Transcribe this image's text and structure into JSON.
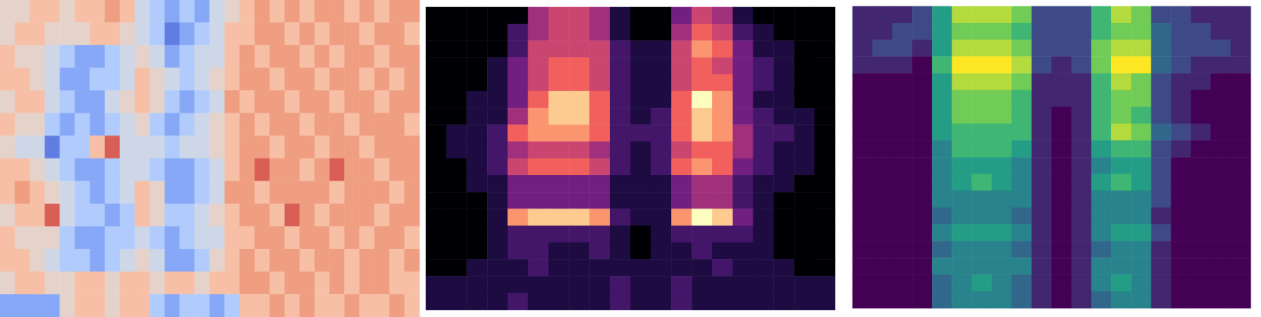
{
  "chart_data": [
    {
      "type": "heatmap",
      "color": "coolwarm",
      "tick_labels": false,
      "value_range": [
        0,
        9
      ],
      "cells": [
        [
          5,
          5,
          6,
          6,
          5,
          6,
          6,
          7,
          6,
          4,
          3,
          2,
          3,
          2,
          4,
          5,
          6,
          7,
          6,
          7,
          6,
          7,
          7,
          6,
          7,
          6,
          7,
          7
        ],
        [
          5,
          6,
          6,
          5,
          5,
          5,
          6,
          6,
          5,
          4,
          3,
          1,
          2,
          3,
          4,
          6,
          6,
          7,
          7,
          6,
          7,
          6,
          7,
          7,
          6,
          7,
          7,
          6
        ],
        [
          6,
          5,
          5,
          4,
          3,
          2,
          2,
          3,
          4,
          5,
          4,
          2,
          3,
          4,
          4,
          6,
          7,
          6,
          7,
          7,
          6,
          7,
          6,
          7,
          7,
          6,
          7,
          7
        ],
        [
          6,
          6,
          5,
          4,
          2,
          2,
          3,
          3,
          4,
          6,
          5,
          4,
          3,
          4,
          5,
          6,
          7,
          7,
          6,
          7,
          7,
          6,
          7,
          7,
          6,
          7,
          6,
          7
        ],
        [
          5,
          6,
          6,
          4,
          3,
          2,
          2,
          4,
          5,
          6,
          5,
          3,
          2,
          3,
          4,
          7,
          6,
          7,
          7,
          6,
          7,
          7,
          6,
          7,
          7,
          6,
          7,
          7
        ],
        [
          6,
          5,
          5,
          3,
          2,
          3,
          2,
          3,
          4,
          5,
          3,
          2,
          3,
          4,
          5,
          6,
          7,
          6,
          7,
          7,
          6,
          7,
          7,
          6,
          7,
          7,
          7,
          6
        ],
        [
          5,
          4,
          4,
          1,
          3,
          3,
          6,
          8,
          4,
          4,
          4,
          3,
          4,
          4,
          5,
          6,
          7,
          7,
          6,
          7,
          7,
          6,
          7,
          7,
          6,
          7,
          7,
          7
        ],
        [
          6,
          6,
          5,
          4,
          3,
          2,
          2,
          3,
          4,
          4,
          3,
          2,
          2,
          3,
          4,
          6,
          7,
          8,
          7,
          7,
          6,
          7,
          8,
          7,
          7,
          6,
          7,
          7
        ],
        [
          6,
          7,
          6,
          5,
          4,
          3,
          2,
          3,
          4,
          6,
          5,
          2,
          2,
          3,
          4,
          7,
          7,
          6,
          7,
          7,
          7,
          7,
          6,
          7,
          7,
          7,
          6,
          7
        ],
        [
          5,
          6,
          6,
          8,
          4,
          3,
          3,
          2,
          3,
          6,
          5,
          3,
          3,
          4,
          5,
          6,
          7,
          7,
          6,
          8,
          7,
          6,
          7,
          7,
          7,
          6,
          7,
          7
        ],
        [
          6,
          5,
          5,
          5,
          3,
          2,
          2,
          3,
          3,
          4,
          3,
          2,
          3,
          4,
          4,
          6,
          6,
          7,
          7,
          6,
          7,
          7,
          6,
          7,
          6,
          7,
          7,
          6
        ],
        [
          6,
          6,
          5,
          4,
          3,
          3,
          2,
          3,
          4,
          5,
          4,
          2,
          2,
          3,
          5,
          6,
          7,
          6,
          7,
          7,
          6,
          7,
          7,
          6,
          7,
          7,
          6,
          7
        ],
        [
          5,
          6,
          6,
          5,
          5,
          6,
          6,
          5,
          6,
          6,
          5,
          6,
          6,
          5,
          6,
          6,
          7,
          7,
          6,
          7,
          7,
          6,
          7,
          6,
          7,
          7,
          6,
          6
        ],
        [
          2,
          2,
          2,
          2,
          5,
          6,
          6,
          5,
          6,
          6,
          3,
          2,
          3,
          3,
          2,
          3,
          6,
          6,
          7,
          6,
          7,
          6,
          6,
          7,
          6,
          6,
          7,
          6
        ]
      ]
    },
    {
      "type": "heatmap",
      "color": "magma",
      "tick_labels": false,
      "value_range": [
        0,
        9
      ],
      "cells": [
        [
          0,
          0,
          0,
          0,
          0,
          4,
          5,
          5,
          4,
          1,
          0,
          0,
          3,
          5,
          4,
          1,
          0,
          0,
          0,
          0
        ],
        [
          0,
          0,
          0,
          0,
          2,
          4,
          5,
          5,
          4,
          1,
          0,
          0,
          4,
          6,
          5,
          2,
          1,
          0,
          0,
          0
        ],
        [
          0,
          0,
          0,
          0,
          2,
          5,
          5,
          5,
          5,
          2,
          1,
          1,
          5,
          7,
          6,
          3,
          1,
          1,
          0,
          0
        ],
        [
          0,
          0,
          0,
          1,
          3,
          5,
          6,
          6,
          5,
          2,
          1,
          1,
          5,
          6,
          5,
          3,
          2,
          1,
          0,
          0
        ],
        [
          0,
          0,
          0,
          1,
          3,
          5,
          6,
          6,
          5,
          2,
          1,
          1,
          5,
          6,
          6,
          3,
          2,
          1,
          0,
          0
        ],
        [
          0,
          0,
          1,
          1,
          3,
          6,
          8,
          8,
          6,
          2,
          1,
          1,
          6,
          9,
          7,
          3,
          1,
          1,
          0,
          0
        ],
        [
          0,
          0,
          1,
          1,
          4,
          7,
          8,
          8,
          6,
          2,
          1,
          2,
          6,
          8,
          7,
          3,
          2,
          1,
          1,
          0
        ],
        [
          0,
          1,
          1,
          2,
          6,
          7,
          7,
          7,
          6,
          2,
          2,
          2,
          6,
          8,
          7,
          4,
          2,
          2,
          1,
          0
        ],
        [
          0,
          1,
          1,
          2,
          4,
          5,
          5,
          5,
          4,
          2,
          1,
          2,
          5,
          6,
          6,
          4,
          2,
          1,
          1,
          0
        ],
        [
          0,
          0,
          1,
          2,
          5,
          6,
          6,
          6,
          5,
          2,
          1,
          2,
          6,
          7,
          6,
          3,
          2,
          1,
          1,
          0
        ],
        [
          0,
          0,
          1,
          1,
          3,
          3,
          3,
          3,
          3,
          1,
          1,
          1,
          3,
          4,
          4,
          2,
          1,
          1,
          0,
          0
        ],
        [
          0,
          0,
          0,
          1,
          3,
          3,
          3,
          3,
          3,
          1,
          1,
          1,
          3,
          4,
          4,
          2,
          1,
          0,
          0,
          0
        ],
        [
          0,
          0,
          0,
          1,
          7,
          8,
          8,
          8,
          7,
          2,
          1,
          1,
          7,
          9,
          8,
          3,
          1,
          0,
          0,
          0
        ],
        [
          0,
          0,
          0,
          1,
          2,
          2,
          2,
          2,
          2,
          1,
          0,
          1,
          2,
          2,
          2,
          2,
          1,
          0,
          0,
          0
        ],
        [
          0,
          0,
          0,
          1,
          2,
          2,
          1,
          1,
          2,
          1,
          0,
          1,
          1,
          2,
          1,
          1,
          1,
          0,
          0,
          0
        ],
        [
          0,
          0,
          1,
          1,
          1,
          2,
          1,
          1,
          1,
          1,
          1,
          1,
          1,
          1,
          2,
          1,
          1,
          1,
          0,
          0
        ],
        [
          1,
          1,
          1,
          1,
          1,
          1,
          1,
          1,
          1,
          2,
          1,
          1,
          2,
          1,
          1,
          1,
          1,
          1,
          1,
          1
        ],
        [
          1,
          1,
          1,
          1,
          2,
          1,
          1,
          1,
          1,
          2,
          1,
          1,
          2,
          1,
          1,
          1,
          1,
          1,
          1,
          1
        ]
      ]
    },
    {
      "type": "heatmap",
      "color": "viridis",
      "tick_labels": false,
      "value_range": [
        0,
        9
      ],
      "cells": [
        [
          1,
          1,
          1,
          2,
          5,
          8,
          8,
          8,
          7,
          2,
          2,
          2,
          6,
          8,
          7,
          2,
          2,
          1,
          1,
          1
        ],
        [
          1,
          1,
          2,
          2,
          5,
          7,
          7,
          7,
          6,
          2,
          2,
          2,
          6,
          7,
          7,
          3,
          2,
          2,
          1,
          1
        ],
        [
          1,
          2,
          2,
          1,
          5,
          8,
          8,
          8,
          7,
          2,
          2,
          2,
          7,
          8,
          8,
          3,
          2,
          2,
          2,
          1
        ],
        [
          1,
          1,
          1,
          0,
          6,
          9,
          9,
          9,
          8,
          2,
          1,
          2,
          7,
          9,
          9,
          3,
          2,
          1,
          1,
          1
        ],
        [
          0,
          0,
          0,
          0,
          5,
          8,
          8,
          8,
          7,
          1,
          1,
          1,
          6,
          8,
          7,
          2,
          1,
          1,
          0,
          0
        ],
        [
          0,
          0,
          0,
          0,
          5,
          7,
          7,
          7,
          6,
          1,
          1,
          1,
          6,
          7,
          7,
          2,
          1,
          0,
          0,
          0
        ],
        [
          0,
          0,
          0,
          0,
          5,
          7,
          7,
          7,
          6,
          1,
          0,
          1,
          6,
          7,
          6,
          2,
          1,
          0,
          0,
          0
        ],
        [
          0,
          0,
          0,
          0,
          5,
          6,
          6,
          6,
          6,
          1,
          0,
          1,
          6,
          8,
          7,
          3,
          2,
          1,
          0,
          0
        ],
        [
          0,
          0,
          0,
          0,
          4,
          6,
          6,
          6,
          5,
          1,
          0,
          1,
          5,
          6,
          6,
          2,
          1,
          0,
          0,
          0
        ],
        [
          0,
          0,
          0,
          0,
          4,
          5,
          5,
          5,
          4,
          1,
          0,
          1,
          4,
          5,
          5,
          2,
          0,
          0,
          0,
          0
        ],
        [
          0,
          0,
          0,
          0,
          4,
          5,
          6,
          5,
          4,
          1,
          0,
          1,
          5,
          6,
          5,
          2,
          0,
          0,
          0,
          0
        ],
        [
          0,
          0,
          0,
          0,
          4,
          4,
          4,
          4,
          4,
          1,
          0,
          1,
          4,
          4,
          4,
          2,
          0,
          0,
          0,
          0
        ],
        [
          0,
          0,
          0,
          0,
          3,
          4,
          4,
          4,
          3,
          1,
          0,
          1,
          4,
          4,
          4,
          1,
          0,
          0,
          0,
          0
        ],
        [
          0,
          0,
          0,
          0,
          4,
          5,
          5,
          5,
          4,
          1,
          0,
          1,
          4,
          5,
          5,
          2,
          0,
          0,
          0,
          0
        ],
        [
          0,
          0,
          0,
          0,
          3,
          4,
          4,
          4,
          3,
          1,
          0,
          1,
          3,
          4,
          4,
          1,
          0,
          0,
          0,
          0
        ],
        [
          0,
          0,
          0,
          0,
          4,
          4,
          4,
          4,
          4,
          1,
          0,
          1,
          4,
          4,
          4,
          1,
          0,
          0,
          0,
          0
        ],
        [
          0,
          0,
          0,
          0,
          3,
          4,
          5,
          4,
          3,
          1,
          0,
          1,
          4,
          5,
          4,
          1,
          0,
          0,
          0,
          0
        ],
        [
          0,
          0,
          0,
          0,
          3,
          4,
          4,
          4,
          3,
          1,
          0,
          1,
          3,
          4,
          4,
          1,
          0,
          0,
          0,
          0
        ]
      ]
    }
  ]
}
